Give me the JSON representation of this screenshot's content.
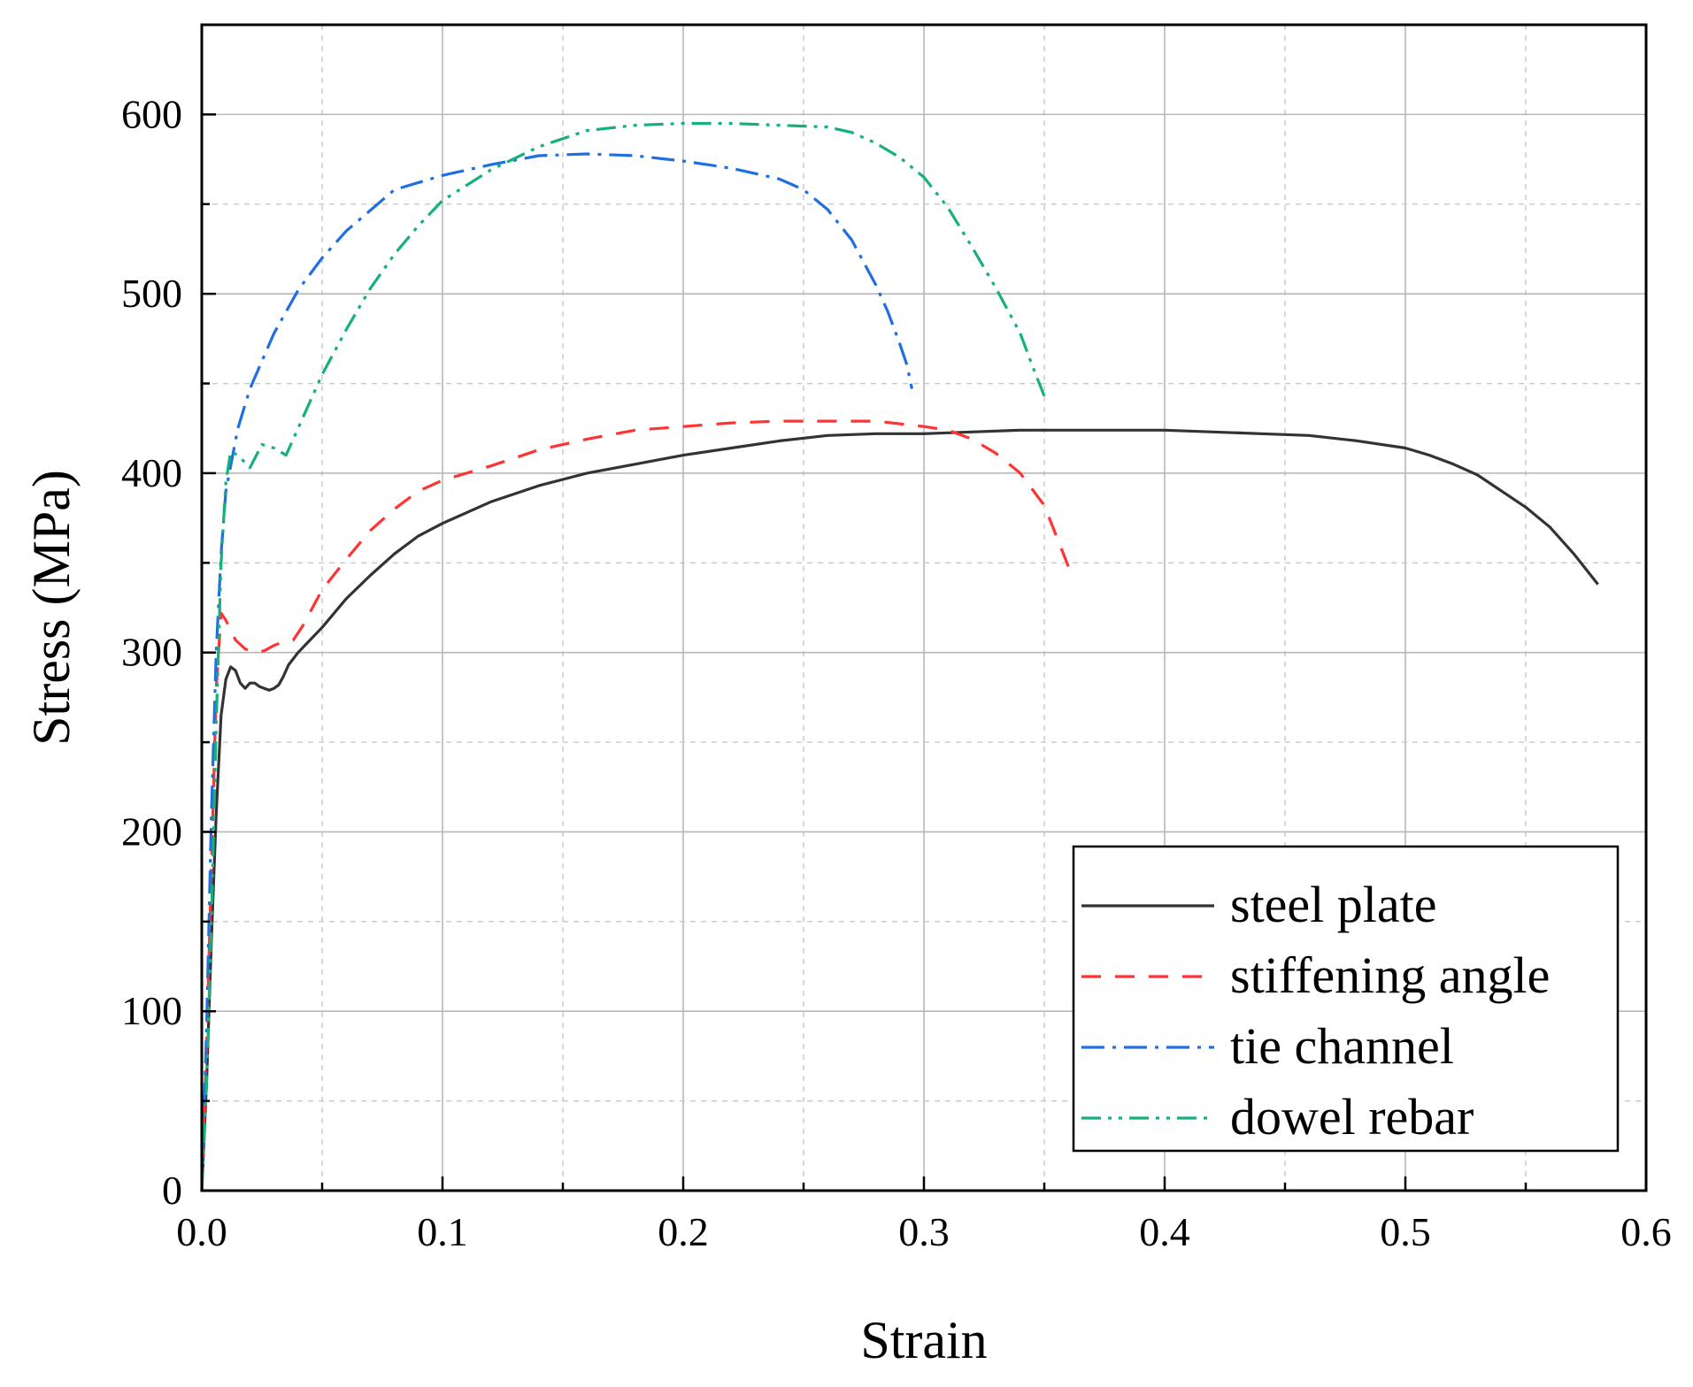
{
  "chart_data": {
    "type": "line",
    "title": "",
    "xlabel": "Strain",
    "ylabel": "Stress (MPa)",
    "xlim": [
      0,
      0.6
    ],
    "ylim": [
      0,
      650
    ],
    "x_ticks": [
      0,
      0.1,
      0.2,
      0.3,
      0.4,
      0.5,
      0.6
    ],
    "x_tick_labels": [
      "0.0",
      "0.1",
      "0.2",
      "0.3",
      "0.4",
      "0.5",
      "0.6"
    ],
    "y_ticks": [
      0,
      100,
      200,
      300,
      400,
      500,
      600
    ],
    "y_tick_labels": [
      "0",
      "100",
      "200",
      "300",
      "400",
      "500",
      "600"
    ],
    "grid": true,
    "legend_position": "bottom-right",
    "colors": {
      "steel_plate": "#333333",
      "stiffening_angle": "#ff3333",
      "tie_channel": "#1f6fe0",
      "dowel_rebar": "#16b07a"
    },
    "series": [
      {
        "name": "steel plate",
        "style": "solid",
        "color": "#333333",
        "x": [
          0,
          0.002,
          0.004,
          0.006,
          0.008,
          0.01,
          0.012,
          0.014,
          0.016,
          0.018,
          0.02,
          0.022,
          0.024,
          0.026,
          0.028,
          0.03,
          0.032,
          0.034,
          0.036,
          0.04,
          0.045,
          0.05,
          0.06,
          0.07,
          0.08,
          0.09,
          0.1,
          0.12,
          0.14,
          0.16,
          0.18,
          0.2,
          0.22,
          0.24,
          0.26,
          0.28,
          0.3,
          0.32,
          0.34,
          0.36,
          0.38,
          0.4,
          0.42,
          0.44,
          0.46,
          0.48,
          0.5,
          0.51,
          0.52,
          0.53,
          0.54,
          0.55,
          0.56,
          0.57,
          0.58
        ],
        "y": [
          0,
          60,
          140,
          210,
          265,
          285,
          292,
          290,
          283,
          280,
          283,
          283,
          281,
          280,
          279,
          280,
          282,
          287,
          293,
          300,
          307,
          314,
          330,
          343,
          355,
          365,
          372,
          384,
          393,
          400,
          405,
          410,
          414,
          418,
          421,
          422,
          422,
          423,
          424,
          424,
          424,
          424,
          423,
          422,
          421,
          418,
          414,
          410,
          405,
          399,
          390,
          381,
          370,
          355,
          338
        ]
      },
      {
        "name": "stiffening angle",
        "style": "dashed",
        "color": "#ff3333",
        "x": [
          0,
          0.002,
          0.004,
          0.006,
          0.008,
          0.01,
          0.014,
          0.018,
          0.022,
          0.026,
          0.03,
          0.034,
          0.038,
          0.042,
          0.05,
          0.06,
          0.07,
          0.08,
          0.09,
          0.1,
          0.12,
          0.14,
          0.16,
          0.18,
          0.2,
          0.22,
          0.24,
          0.26,
          0.28,
          0.3,
          0.31,
          0.32,
          0.33,
          0.34,
          0.35,
          0.355,
          0.36
        ],
        "y": [
          0,
          80,
          180,
          280,
          322,
          318,
          307,
          302,
          300,
          301,
          304,
          306,
          307,
          315,
          335,
          352,
          368,
          380,
          390,
          396,
          404,
          413,
          419,
          424,
          426,
          428,
          429,
          429,
          429,
          426,
          424,
          419,
          411,
          400,
          382,
          365,
          348
        ]
      },
      {
        "name": "tie channel",
        "style": "dash-dot",
        "color": "#1f6fe0",
        "x": [
          0,
          0.002,
          0.004,
          0.006,
          0.008,
          0.01,
          0.015,
          0.02,
          0.03,
          0.04,
          0.05,
          0.06,
          0.08,
          0.1,
          0.12,
          0.14,
          0.16,
          0.18,
          0.2,
          0.22,
          0.24,
          0.25,
          0.26,
          0.27,
          0.28,
          0.285,
          0.29,
          0.293,
          0.295
        ],
        "y": [
          0,
          90,
          210,
          300,
          355,
          390,
          425,
          447,
          478,
          502,
          520,
          535,
          558,
          566,
          572,
          577,
          578,
          577,
          574,
          570,
          564,
          558,
          547,
          530,
          505,
          490,
          472,
          460,
          447
        ]
      },
      {
        "name": "dowel rebar",
        "style": "dash-dot-dot",
        "color": "#16b07a",
        "x": [
          0,
          0.002,
          0.004,
          0.006,
          0.008,
          0.01,
          0.012,
          0.015,
          0.02,
          0.025,
          0.03,
          0.035,
          0.04,
          0.045,
          0.05,
          0.06,
          0.07,
          0.08,
          0.09,
          0.1,
          0.12,
          0.14,
          0.16,
          0.18,
          0.2,
          0.22,
          0.24,
          0.26,
          0.27,
          0.28,
          0.29,
          0.3,
          0.31,
          0.32,
          0.33,
          0.34,
          0.345,
          0.35
        ],
        "y": [
          0,
          60,
          150,
          260,
          350,
          395,
          412,
          410,
          403,
          416,
          414,
          410,
          425,
          440,
          455,
          480,
          503,
          522,
          538,
          552,
          569,
          582,
          591,
          594,
          595,
          595,
          594,
          593,
          590,
          584,
          576,
          565,
          548,
          526,
          503,
          478,
          460,
          443
        ]
      }
    ]
  }
}
